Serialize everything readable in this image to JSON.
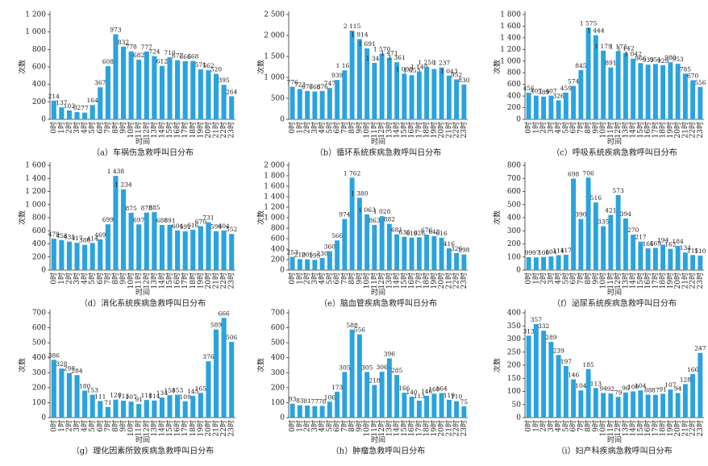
{
  "chart_data": [
    {
      "type": "bar",
      "title": "（a）车祸伤急救呼叫日分布",
      "xlabel": "时间",
      "ylabel": "次数",
      "color": "#2aa3de",
      "categories": [
        "0时",
        "1时",
        "2时",
        "3时",
        "4时",
        "5时",
        "6时",
        "7时",
        "8时",
        "9时",
        "10时",
        "11时",
        "12时",
        "13时",
        "14时",
        "15时",
        "16时",
        "17时",
        "18时",
        "19时",
        "20时",
        "21时",
        "22时",
        "23时"
      ],
      "values": [
        214,
        137,
        102,
        82,
        77,
        164,
        367,
        608,
        973,
        832,
        778,
        682,
        777,
        724,
        612,
        710,
        677,
        666,
        668,
        571,
        562,
        520,
        395,
        264
      ],
      "ylim": [
        0,
        1200
      ],
      "yticks": [
        0,
        200,
        400,
        600,
        800,
        {
          "value": 1000,
          "label": "1 000"
        },
        {
          "value": 1200,
          "label": "1 200"
        }
      ]
    },
    {
      "type": "bar",
      "title": "（b）循环系统疾病急救呼叫日分布",
      "xlabel": "时间",
      "ylabel": "次数",
      "color": "#2aa3de",
      "categories": [
        "0时",
        "1时",
        "2时",
        "3时",
        "4时",
        "5时",
        "6时",
        "7时",
        "8时",
        "9时",
        "10时",
        "11时",
        "12时",
        "13时",
        "14时",
        "15时",
        "16时",
        "17时",
        "18时",
        "19时",
        "20时",
        "21时",
        "22时",
        "23时"
      ],
      "values": [
        776,
        723,
        677,
        663,
        676,
        747,
        939,
        1169,
        2115,
        1914,
        1691,
        1346,
        1570,
        1471,
        1361,
        1090,
        1053,
        1140,
        1250,
        1200,
        1237,
        1043,
        952,
        830
      ],
      "value_labels": [
        "776",
        "723",
        "677",
        "663",
        "676",
        "747",
        "939",
        "1 169",
        "2 115",
        "1 914",
        "1 691",
        "1 346",
        "1 570",
        "1 471",
        "1 361",
        "1 090",
        "1 053",
        "1 140",
        "1 250",
        null,
        "1 237",
        "1 043",
        "952",
        "830"
      ],
      "ylim": [
        0,
        2500
      ],
      "yticks": [
        0,
        500,
        {
          "value": 1000,
          "label": "1 000"
        },
        {
          "value": 1500,
          "label": "1 500"
        },
        {
          "value": 2000,
          "label": "2 000"
        },
        {
          "value": 2500,
          "label": "2 500"
        }
      ]
    },
    {
      "type": "bar",
      "title": "（c）呼吸系统疾病急救呼叫日分布",
      "xlabel": "时间",
      "ylabel": "次数",
      "color": "#2aa3de",
      "categories": [
        "0时",
        "1时",
        "2时",
        "3时",
        "4时",
        "5时",
        "6时",
        "7时",
        "8时",
        "9时",
        "10时",
        "11时",
        "12时",
        "13时",
        "14时",
        "15时",
        "16时",
        "17时",
        "18时",
        "19时",
        "20时",
        "21时",
        "22时",
        "23时"
      ],
      "values": [
        456,
        407,
        389,
        407,
        326,
        459,
        574,
        845,
        1575,
        1444,
        1179,
        891,
        1173,
        1142,
        1042,
        966,
        939,
        951,
        929,
        980,
        953,
        785,
        670,
        556
      ],
      "value_labels": [
        "456",
        "407",
        "389",
        "407",
        "326",
        "459",
        "574",
        "845",
        "1 575",
        "1 444",
        "1 179",
        "891",
        "1 173",
        "1 142",
        "1 042",
        "966",
        "939",
        "951",
        "929",
        "980",
        "953",
        "785",
        "670",
        "556"
      ],
      "ylim": [
        0,
        1800
      ],
      "yticks": [
        0,
        200,
        400,
        600,
        800,
        {
          "value": 1000,
          "label": "1 000"
        },
        {
          "value": 1200,
          "label": "1 200"
        },
        {
          "value": 1400,
          "label": "1 400"
        },
        {
          "value": 1600,
          "label": "1 600"
        },
        {
          "value": 1800,
          "label": "1 800"
        }
      ]
    },
    {
      "type": "bar",
      "title": "（d）消化系统疾病急救呼叫日分布",
      "xlabel": "时间",
      "ylabel": "次数",
      "color": "#2aa3de",
      "categories": [
        "0时",
        "1时",
        "2时",
        "3时",
        "4时",
        "5时",
        "6时",
        "7时",
        "8时",
        "9时",
        "10时",
        "11时",
        "12时",
        "13时",
        "14时",
        "15时",
        "16时",
        "17时",
        "18时",
        "19时",
        "20时",
        "21时",
        "22时",
        "23时"
      ],
      "values": [
        479,
        458,
        435,
        417,
        386,
        414,
        469,
        699,
        1438,
        1234,
        875,
        697,
        878,
        885,
        688,
        691,
        604,
        592,
        616,
        670,
        731,
        594,
        604,
        552
      ],
      "value_labels": [
        "479",
        "458",
        "435",
        "417",
        "386",
        "414",
        "469",
        "699",
        "1 438",
        "1 234",
        "875",
        "697",
        "878",
        "885",
        "688",
        "691",
        "604",
        "592",
        "616",
        "670",
        "731",
        "594",
        "604",
        "552"
      ],
      "ylim": [
        0,
        1600
      ],
      "yticks": [
        0,
        200,
        400,
        600,
        800,
        {
          "value": 1000,
          "label": "1 000"
        },
        {
          "value": 1200,
          "label": "1 200"
        },
        {
          "value": 1400,
          "label": "1 400"
        },
        {
          "value": 1600,
          "label": "1 600"
        }
      ]
    },
    {
      "type": "bar",
      "title": "（e）脑血管疾病急救呼叫日分布",
      "xlabel": "时间",
      "ylabel": "次数",
      "color": "#2aa3de",
      "categories": [
        "0时",
        "1时",
        "2时",
        "3时",
        "4时",
        "5时",
        "6时",
        "7时",
        "8时",
        "9时",
        "10时",
        "11时",
        "12时",
        "13时",
        "14时",
        "15时",
        "16时",
        "17时",
        "18时",
        "19时",
        "20时",
        "21时",
        "22时",
        "23时"
      ],
      "values": [
        253,
        210,
        205,
        195,
        230,
        360,
        566,
        974,
        1762,
        1380,
        1063,
        863,
        1028,
        882,
        681,
        636,
        619,
        626,
        676,
        648,
        616,
        416,
        326,
        298
      ],
      "value_labels": [
        "253",
        "210",
        "205",
        "195",
        "230",
        "360",
        "566",
        "974",
        "1 762",
        "1 380",
        "1 063",
        "863",
        "1 028",
        "882",
        "681",
        "636",
        "619",
        "626",
        "676",
        "648",
        "616",
        "416",
        "326",
        "298"
      ],
      "ylim": [
        0,
        2000
      ],
      "yticks": [
        0,
        200,
        400,
        600,
        800,
        {
          "value": 1000,
          "label": "1 000"
        },
        {
          "value": 1200,
          "label": "1 200"
        },
        {
          "value": 1400,
          "label": "1 400"
        },
        {
          "value": 1600,
          "label": "1 600"
        },
        {
          "value": 1800,
          "label": "1 800"
        },
        {
          "value": 2000,
          "label": "2 000"
        }
      ]
    },
    {
      "type": "bar",
      "title": "（f）泌尿系统疾病急救呼叫日分布",
      "xlabel": "时间",
      "ylabel": "次数",
      "color": "#2aa3de",
      "categories": [
        "0时",
        "1时",
        "2时",
        "3时",
        "4时",
        "5时",
        "6时",
        "7时",
        "8时",
        "9时",
        "10时",
        "11时",
        "12时",
        "13时",
        "14时",
        "15时",
        "16时",
        "17时",
        "18时",
        "19时",
        "20时",
        "21时",
        "22时",
        "23时"
      ],
      "values": [
        99,
        97,
        100,
        104,
        114,
        117,
        698,
        390,
        706,
        516,
        335,
        421,
        573,
        394,
        270,
        217,
        166,
        169,
        194,
        162,
        184,
        134,
        115,
        110
      ],
      "ylim": [
        0,
        800
      ],
      "yticks": [
        0,
        100,
        200,
        300,
        400,
        500,
        600,
        700,
        800
      ]
    },
    {
      "type": "bar",
      "title": "（g）理化因素所致疾病急救呼叫日分布",
      "xlabel": "时间",
      "ylabel": "次数",
      "color": "#2aa3de",
      "categories": [
        "0时",
        "1时",
        "2时",
        "3时",
        "4时",
        "5时",
        "6时",
        "7时",
        "8时",
        "9时",
        "10时",
        "11时",
        "12时",
        "13时",
        "14时",
        "15时",
        "16时",
        "17时",
        "18时",
        "19时",
        "20时",
        "21时",
        "22时",
        "23时"
      ],
      "values": [
        386,
        328,
        298,
        284,
        180,
        153,
        111,
        71,
        120,
        113,
        107,
        91,
        118,
        114,
        134,
        150,
        153,
        109,
        145,
        165,
        376,
        589,
        666,
        506
      ],
      "ylim": [
        0,
        700
      ],
      "yticks": [
        0,
        100,
        200,
        300,
        400,
        500,
        600,
        700
      ]
    },
    {
      "type": "bar",
      "title": "（h）肿瘤急救呼叫日分布",
      "xlabel": "时间",
      "ylabel": "次数",
      "color": "#2aa3de",
      "categories": [
        "0时",
        "1时",
        "2时",
        "3时",
        "4时",
        "5时",
        "6时",
        "7时",
        "8时",
        "9时",
        "10时",
        "11时",
        "12时",
        "13时",
        "14时",
        "15时",
        "16时",
        "17时",
        "18时",
        "19时",
        "20时",
        "21时",
        "22时",
        "23时"
      ],
      "values": [
        93,
        83,
        81,
        77,
        78,
        106,
        173,
        305,
        588,
        556,
        305,
        218,
        306,
        396,
        285,
        166,
        140,
        113,
        146,
        160,
        164,
        119,
        110,
        75
      ],
      "ylim": [
        0,
        700
      ],
      "yticks": [
        0,
        100,
        200,
        300,
        400,
        500,
        600,
        700
      ]
    },
    {
      "type": "bar",
      "title": "（i）妇产科疾病急救呼叫日分布",
      "xlabel": "时间",
      "ylabel": "次数",
      "color": "#2aa3de",
      "categories": [
        "0时",
        "1时",
        "2时",
        "3时",
        "4时",
        "5时",
        "6时",
        "7时",
        "8时",
        "9时",
        "10时",
        "11时",
        "12时",
        "13时",
        "14时",
        "15时",
        "16时",
        "17时",
        "18时",
        "19时",
        "20时",
        "21时",
        "22时",
        "23时"
      ],
      "values": [
        313,
        357,
        332,
        289,
        239,
        197,
        146,
        104,
        185,
        113,
        94,
        92,
        79,
        96,
        100,
        104,
        88,
        87,
        91,
        107,
        94,
        128,
        166,
        247
      ],
      "ylim": [
        0,
        400
      ],
      "yticks": [
        0,
        50,
        100,
        150,
        200,
        250,
        300,
        350,
        400
      ]
    }
  ]
}
